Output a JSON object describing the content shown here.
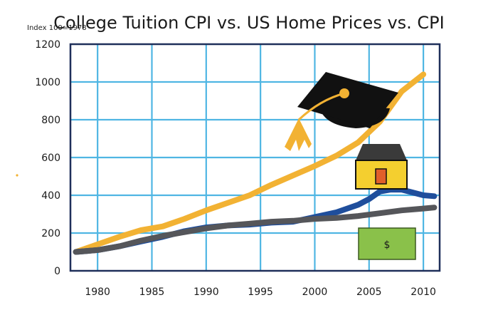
{
  "chart_data": {
    "type": "line",
    "title": "College Tuition CPI vs. US Home Prices vs. CPI",
    "ylabel": "Index 100=1978",
    "xlabel": "",
    "xlim": [
      1977.5,
      2011.5
    ],
    "ylim": [
      0,
      1200
    ],
    "x_ticks": [
      1980,
      1985,
      1990,
      1995,
      2000,
      2005,
      2010
    ],
    "y_ticks": [
      0,
      200,
      400,
      600,
      800,
      1000,
      1200
    ],
    "grid": true,
    "series": [
      {
        "icon": "graduation-cap-icon",
        "color": "#f2b233",
        "x": [
          1978,
          1980,
          1982,
          1984,
          1986,
          1988,
          1990,
          1992,
          1994,
          1996,
          1998,
          2000,
          2002,
          2004,
          2006,
          2008,
          2010
        ],
        "values": [
          100,
          140,
          180,
          215,
          235,
          275,
          320,
          360,
          400,
          455,
          505,
          555,
          610,
          680,
          790,
          950,
          1040
        ]
      },
      {
        "icon": "house-icon",
        "color": "#1f4e9c",
        "x": [
          1978,
          1980,
          1982,
          1984,
          1986,
          1988,
          1990,
          1992,
          1994,
          1996,
          1998,
          2000,
          2002,
          2004,
          2005,
          2006,
          2007,
          2008,
          2009,
          2010,
          2011
        ],
        "values": [
          100,
          110,
          130,
          155,
          180,
          210,
          230,
          240,
          245,
          255,
          260,
          285,
          310,
          350,
          380,
          420,
          430,
          430,
          415,
          400,
          395
        ]
      },
      {
        "icon": "dollar-bill-icon",
        "color": "#55565a",
        "x": [
          1978,
          1980,
          1982,
          1984,
          1986,
          1988,
          1990,
          1992,
          1994,
          1996,
          1998,
          2000,
          2002,
          2004,
          2006,
          2008,
          2010,
          2011
        ],
        "values": [
          100,
          110,
          130,
          160,
          185,
          205,
          225,
          240,
          250,
          260,
          265,
          275,
          280,
          290,
          305,
          320,
          330,
          335
        ]
      }
    ],
    "dollar_symbol": "$",
    "colors": {
      "grid": "#4fb6e3",
      "frame": "#1f2f5a",
      "cap": "#111111",
      "tassel": "#f2b233",
      "house_wall": "#f4cf2f",
      "house_roof": "#3a3a3a",
      "house_door": "#e0602a",
      "bill": "#8ac14a"
    }
  }
}
